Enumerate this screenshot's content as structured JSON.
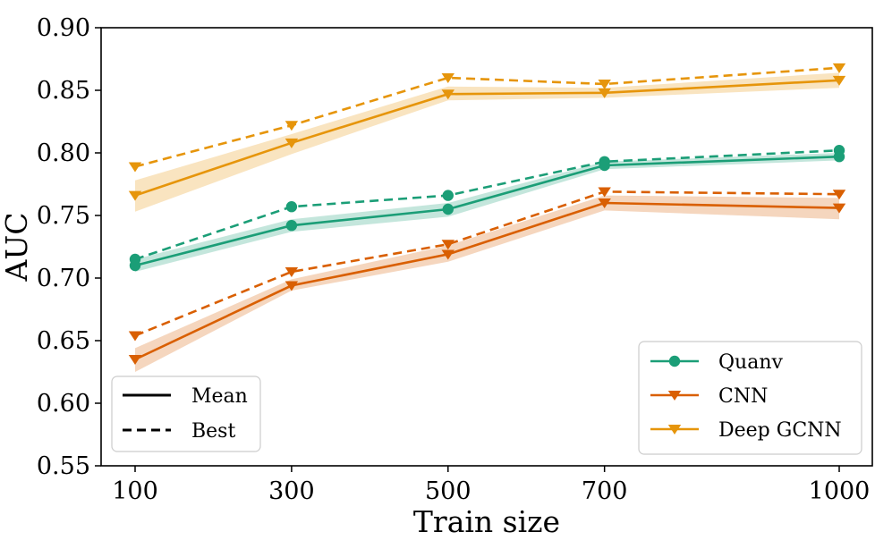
{
  "chart_data": {
    "type": "line",
    "title": "",
    "xlabel": "Train size",
    "ylabel": "AUC",
    "x": [
      100,
      300,
      500,
      700,
      1000
    ],
    "xticks": [
      "100",
      "300",
      "500",
      "700",
      "1000"
    ],
    "ylim": [
      0.55,
      0.9
    ],
    "yticks": [
      "0.55",
      "0.60",
      "0.65",
      "0.70",
      "0.75",
      "0.80",
      "0.85",
      "0.90"
    ],
    "grid": false,
    "series": [
      {
        "name": "Quanv",
        "color": "#1b9e77",
        "marker": "circle",
        "mean": [
          0.71,
          0.742,
          0.755,
          0.79,
          0.797
        ],
        "best": [
          0.715,
          0.757,
          0.766,
          0.793,
          0.802
        ],
        "band_low": [
          0.705,
          0.737,
          0.749,
          0.787,
          0.794
        ],
        "band_high": [
          0.715,
          0.747,
          0.76,
          0.793,
          0.8
        ]
      },
      {
        "name": "CNN",
        "color": "#d95f02",
        "marker": "triangle-down",
        "mean": [
          0.635,
          0.694,
          0.719,
          0.76,
          0.756
        ],
        "best": [
          0.654,
          0.705,
          0.727,
          0.769,
          0.767
        ],
        "band_low": [
          0.625,
          0.69,
          0.713,
          0.754,
          0.747
        ],
        "band_high": [
          0.644,
          0.699,
          0.726,
          0.766,
          0.764
        ]
      },
      {
        "name": "Deep GCNN",
        "color": "#e6950b",
        "marker": "triangle-down",
        "mean": [
          0.766,
          0.808,
          0.847,
          0.848,
          0.858
        ],
        "best": [
          0.789,
          0.822,
          0.86,
          0.855,
          0.868
        ],
        "band_low": [
          0.753,
          0.799,
          0.842,
          0.844,
          0.852
        ],
        "band_high": [
          0.778,
          0.815,
          0.853,
          0.852,
          0.864
        ]
      }
    ],
    "legend_series": {
      "position": "bottom-right",
      "entries": [
        "Quanv",
        "CNN",
        "Deep GCNN"
      ]
    },
    "legend_style": {
      "position": "bottom-left",
      "entries": [
        {
          "label": "Mean",
          "style": "solid"
        },
        {
          "label": "Best",
          "style": "dashed"
        }
      ]
    }
  }
}
